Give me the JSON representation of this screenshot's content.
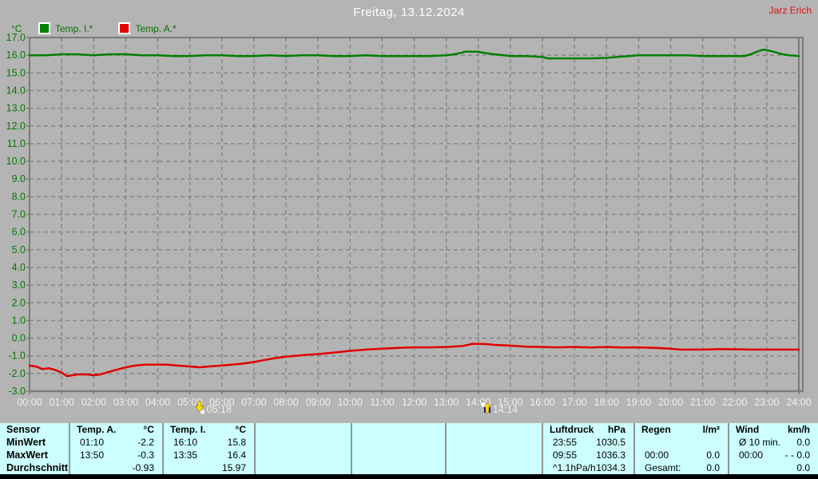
{
  "header": {
    "title": "Freitag, 13.12.2024",
    "user": "Jarz Erich"
  },
  "colors": {
    "background": "#b4b4b4",
    "grid": "#868686",
    "frame": "#7b7b7b",
    "axis_text_y": "#067806",
    "axis_text_x": "#f0f0f0",
    "temp_i_line": "#008000",
    "temp_a_line": "#e00000",
    "table_background": "#ccffff",
    "title_text": "#ffffff",
    "user_text": "#dd1111"
  },
  "chart_data": {
    "type": "line",
    "unit_label": "°C",
    "ylim": [
      -3,
      17
    ],
    "xlim_hours": [
      0,
      24
    ],
    "grid": "dashed",
    "legend_position": "top-left",
    "y_tick_labels": [
      "17.0",
      "16.0",
      "15.0",
      "14.0",
      "13.0",
      "12.0",
      "11.0",
      "10.0",
      "9.0",
      "8.0",
      "7.0",
      "6.0",
      "5.0",
      "4.0",
      "3.0",
      "2.0",
      "1.0",
      "0.0",
      "-1.0",
      "-2.0",
      "-3.0"
    ],
    "x_tick_labels": [
      "00:00",
      "01:00",
      "02:00",
      "03:00",
      "04:00",
      "05:00",
      "06:00",
      "07:00",
      "08:00",
      "09:00",
      "10:00",
      "11:00",
      "12:00",
      "13:00",
      "14:00",
      "15:00",
      "16:00",
      "17:00",
      "18:00",
      "19:00",
      "20:00",
      "21:00",
      "22:00",
      "23:00",
      "24:00"
    ],
    "series": [
      {
        "name": "Temp. I.*",
        "color": "#008000",
        "points": [
          [
            0,
            16.0
          ],
          [
            0.5,
            16.0
          ],
          [
            1,
            16.05
          ],
          [
            1.5,
            16.05
          ],
          [
            2,
            16.0
          ],
          [
            2.5,
            16.05
          ],
          [
            3,
            16.05
          ],
          [
            3.5,
            16.0
          ],
          [
            4,
            16.0
          ],
          [
            4.5,
            15.95
          ],
          [
            5,
            15.95
          ],
          [
            5.5,
            16.0
          ],
          [
            6,
            16.0
          ],
          [
            6.5,
            15.95
          ],
          [
            7,
            15.95
          ],
          [
            7.5,
            16.0
          ],
          [
            8,
            15.95
          ],
          [
            8.5,
            16.0
          ],
          [
            9,
            16.0
          ],
          [
            9.5,
            15.95
          ],
          [
            10,
            15.95
          ],
          [
            10.5,
            16.0
          ],
          [
            11,
            15.95
          ],
          [
            11.5,
            15.95
          ],
          [
            12,
            15.95
          ],
          [
            12.5,
            15.95
          ],
          [
            13,
            16.0
          ],
          [
            13.25,
            16.05
          ],
          [
            13.5,
            16.15
          ],
          [
            13.58,
            16.2
          ],
          [
            13.8,
            16.2
          ],
          [
            14,
            16.2
          ],
          [
            14.1,
            16.15
          ],
          [
            14.3,
            16.1
          ],
          [
            14.5,
            16.05
          ],
          [
            14.8,
            16.0
          ],
          [
            15,
            15.95
          ],
          [
            15.5,
            15.95
          ],
          [
            16,
            15.9
          ],
          [
            16.17,
            15.82
          ],
          [
            16.5,
            15.82
          ],
          [
            17,
            15.82
          ],
          [
            17.5,
            15.82
          ],
          [
            18,
            15.85
          ],
          [
            18.3,
            15.9
          ],
          [
            18.7,
            15.95
          ],
          [
            19,
            16.0
          ],
          [
            19.5,
            16.0
          ],
          [
            20,
            16.0
          ],
          [
            20.5,
            16.0
          ],
          [
            21,
            15.95
          ],
          [
            21.5,
            15.95
          ],
          [
            22,
            15.95
          ],
          [
            22.3,
            15.95
          ],
          [
            22.5,
            16.05
          ],
          [
            22.7,
            16.2
          ],
          [
            22.9,
            16.32
          ],
          [
            23.1,
            16.25
          ],
          [
            23.3,
            16.15
          ],
          [
            23.5,
            16.05
          ],
          [
            23.7,
            16.0
          ],
          [
            24,
            15.95
          ]
        ]
      },
      {
        "name": "Temp. A.*",
        "color": "#e00000",
        "points": [
          [
            0,
            -1.55
          ],
          [
            0.2,
            -1.6
          ],
          [
            0.4,
            -1.75
          ],
          [
            0.6,
            -1.7
          ],
          [
            0.8,
            -1.8
          ],
          [
            1,
            -1.95
          ],
          [
            1.17,
            -2.15
          ],
          [
            1.5,
            -2.05
          ],
          [
            1.8,
            -2.05
          ],
          [
            2,
            -2.1
          ],
          [
            2.2,
            -2.05
          ],
          [
            2.5,
            -1.9
          ],
          [
            2.8,
            -1.75
          ],
          [
            3,
            -1.65
          ],
          [
            3.3,
            -1.55
          ],
          [
            3.6,
            -1.5
          ],
          [
            4,
            -1.5
          ],
          [
            4.3,
            -1.5
          ],
          [
            4.6,
            -1.55
          ],
          [
            5,
            -1.6
          ],
          [
            5.3,
            -1.65
          ],
          [
            5.6,
            -1.6
          ],
          [
            6,
            -1.55
          ],
          [
            6.3,
            -1.5
          ],
          [
            6.6,
            -1.45
          ],
          [
            7,
            -1.35
          ],
          [
            7.3,
            -1.25
          ],
          [
            7.6,
            -1.15
          ],
          [
            8,
            -1.05
          ],
          [
            8.3,
            -1.0
          ],
          [
            8.6,
            -0.95
          ],
          [
            9,
            -0.9
          ],
          [
            9.3,
            -0.85
          ],
          [
            9.6,
            -0.8
          ],
          [
            10,
            -0.72
          ],
          [
            10.5,
            -0.65
          ],
          [
            11,
            -0.6
          ],
          [
            11.5,
            -0.55
          ],
          [
            12,
            -0.52
          ],
          [
            12.5,
            -0.52
          ],
          [
            13,
            -0.5
          ],
          [
            13.5,
            -0.45
          ],
          [
            13.83,
            -0.32
          ],
          [
            14,
            -0.33
          ],
          [
            14.2,
            -0.33
          ],
          [
            14.5,
            -0.38
          ],
          [
            15,
            -0.42
          ],
          [
            15.5,
            -0.48
          ],
          [
            16,
            -0.5
          ],
          [
            16.5,
            -0.52
          ],
          [
            17,
            -0.5
          ],
          [
            17.5,
            -0.53
          ],
          [
            18,
            -0.5
          ],
          [
            18.5,
            -0.53
          ],
          [
            19,
            -0.52
          ],
          [
            19.5,
            -0.55
          ],
          [
            20,
            -0.6
          ],
          [
            20.3,
            -0.65
          ],
          [
            21,
            -0.65
          ],
          [
            21.5,
            -0.62
          ],
          [
            22,
            -0.63
          ],
          [
            22.5,
            -0.65
          ],
          [
            23,
            -0.65
          ],
          [
            23.5,
            -0.65
          ],
          [
            24,
            -0.65
          ]
        ]
      }
    ],
    "markers": [
      {
        "time": "05:18",
        "hour": 5.3,
        "event": "set"
      },
      {
        "time": "14:14",
        "hour": 14.23,
        "event": "rise"
      }
    ]
  },
  "table": {
    "row_labels": [
      "Sensor",
      "MinWert",
      "MaxWert",
      "Durchschnitt"
    ],
    "columns": [
      {
        "name": "Temp. A.",
        "unit": "°C",
        "rows": [
          [
            "01:10",
            "-2.2"
          ],
          [
            "13:50",
            "-0.3"
          ],
          [
            "",
            "-0.93"
          ]
        ]
      },
      {
        "name": "Temp. I.",
        "unit": "°C",
        "rows": [
          [
            "16:10",
            "15.8"
          ],
          [
            "13:35",
            "16.4"
          ],
          [
            "",
            "15.97"
          ]
        ]
      },
      {
        "name": "",
        "unit": "",
        "rows": [
          [
            "",
            ""
          ],
          [
            "",
            ""
          ],
          [
            "",
            ""
          ]
        ]
      },
      {
        "name": "",
        "unit": "",
        "rows": [
          [
            "",
            ""
          ],
          [
            "",
            ""
          ],
          [
            "",
            ""
          ]
        ]
      },
      {
        "name": "",
        "unit": "",
        "rows": [
          [
            "",
            ""
          ],
          [
            "",
            ""
          ],
          [
            "",
            ""
          ]
        ]
      },
      {
        "name": "Luftdruck",
        "unit": "hPa",
        "rows": [
          [
            "23:55",
            "1030.5"
          ],
          [
            "09:55",
            "1036.3"
          ],
          [
            "^1.1hPa/h",
            "1034.3"
          ]
        ]
      },
      {
        "name": "Regen",
        "unit": "l/m²",
        "rows": [
          [
            "",
            ""
          ],
          [
            "00:00",
            "0.0"
          ],
          [
            "Gesamt:",
            "0.0"
          ]
        ]
      },
      {
        "name": "Wind",
        "unit": "km/h",
        "rows": [
          [
            "Ø 10 min.",
            "0.0"
          ],
          [
            "00:00",
            "- - 0.0"
          ],
          [
            "",
            "0.0"
          ]
        ]
      }
    ]
  }
}
